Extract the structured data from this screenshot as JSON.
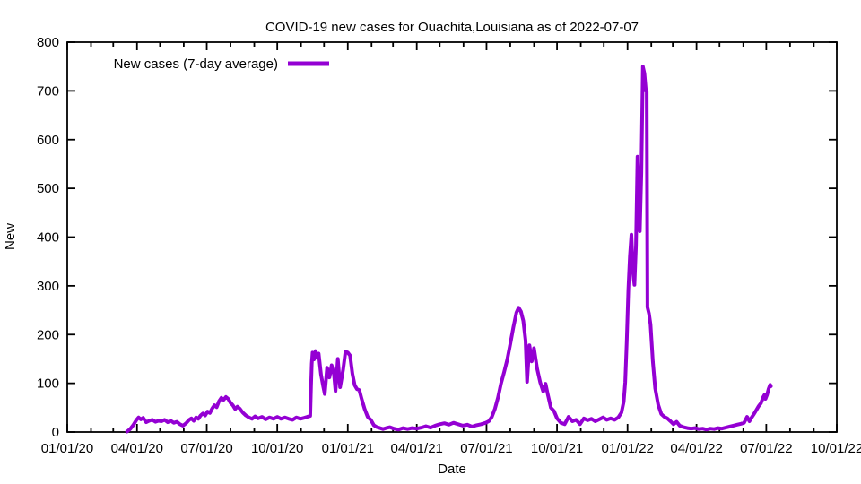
{
  "page": {
    "background": "#ffffff"
  },
  "chart_data": {
    "type": "line",
    "title": "COVID-19 new cases for Ouachita,Louisiana as of 2022-07-07",
    "xlabel": "Date",
    "ylabel": "New",
    "grid": false,
    "legend_position": "top-left-inside",
    "axis_color": "#000000",
    "x_range": [
      "2020-01-01",
      "2022-10-01"
    ],
    "ylim": [
      0,
      800
    ],
    "y_ticks": [
      0,
      100,
      200,
      300,
      400,
      500,
      600,
      700,
      800
    ],
    "x_ticks": [
      {
        "date": "2020-01-01",
        "label": "01/01/20"
      },
      {
        "date": "2020-04-01",
        "label": "04/01/20"
      },
      {
        "date": "2020-07-01",
        "label": "07/01/20"
      },
      {
        "date": "2020-10-01",
        "label": "10/01/20"
      },
      {
        "date": "2021-01-01",
        "label": "01/01/21"
      },
      {
        "date": "2021-04-01",
        "label": "04/01/21"
      },
      {
        "date": "2021-07-01",
        "label": "07/01/21"
      },
      {
        "date": "2021-10-01",
        "label": "10/01/21"
      },
      {
        "date": "2022-01-01",
        "label": "01/01/22"
      },
      {
        "date": "2022-04-01",
        "label": "04/01/22"
      },
      {
        "date": "2022-07-01",
        "label": "07/01/22"
      },
      {
        "date": "2022-10-01",
        "label": "10/01/22"
      }
    ],
    "minor_x_ticks": "monthly",
    "series": [
      {
        "name": "New cases (7-day average)",
        "color": "#9400D3",
        "points": [
          [
            "2020-03-19",
            1
          ],
          [
            "2020-03-23",
            6
          ],
          [
            "2020-03-27",
            14
          ],
          [
            "2020-03-31",
            24
          ],
          [
            "2020-04-03",
            30
          ],
          [
            "2020-04-06",
            26
          ],
          [
            "2020-04-09",
            29
          ],
          [
            "2020-04-13",
            20
          ],
          [
            "2020-04-17",
            23
          ],
          [
            "2020-04-21",
            25
          ],
          [
            "2020-04-25",
            21
          ],
          [
            "2020-04-29",
            23
          ],
          [
            "2020-05-03",
            22
          ],
          [
            "2020-05-07",
            25
          ],
          [
            "2020-05-11",
            20
          ],
          [
            "2020-05-15",
            23
          ],
          [
            "2020-05-19",
            19
          ],
          [
            "2020-05-23",
            21
          ],
          [
            "2020-05-27",
            16
          ],
          [
            "2020-05-31",
            13
          ],
          [
            "2020-06-04",
            18
          ],
          [
            "2020-06-08",
            25
          ],
          [
            "2020-06-11",
            28
          ],
          [
            "2020-06-14",
            23
          ],
          [
            "2020-06-17",
            30
          ],
          [
            "2020-06-20",
            27
          ],
          [
            "2020-06-23",
            34
          ],
          [
            "2020-06-26",
            38
          ],
          [
            "2020-06-29",
            34
          ],
          [
            "2020-07-02",
            42
          ],
          [
            "2020-07-05",
            39
          ],
          [
            "2020-07-08",
            48
          ],
          [
            "2020-07-11",
            55
          ],
          [
            "2020-07-14",
            51
          ],
          [
            "2020-07-17",
            63
          ],
          [
            "2020-07-20",
            70
          ],
          [
            "2020-07-23",
            66
          ],
          [
            "2020-07-26",
            72
          ],
          [
            "2020-07-29",
            68
          ],
          [
            "2020-08-01",
            60
          ],
          [
            "2020-08-04",
            55
          ],
          [
            "2020-08-07",
            47
          ],
          [
            "2020-08-10",
            52
          ],
          [
            "2020-08-13",
            48
          ],
          [
            "2020-08-17",
            40
          ],
          [
            "2020-08-21",
            34
          ],
          [
            "2020-08-25",
            30
          ],
          [
            "2020-08-29",
            27
          ],
          [
            "2020-09-02",
            32
          ],
          [
            "2020-09-06",
            28
          ],
          [
            "2020-09-11",
            31
          ],
          [
            "2020-09-16",
            26
          ],
          [
            "2020-09-21",
            30
          ],
          [
            "2020-09-26",
            27
          ],
          [
            "2020-10-01",
            31
          ],
          [
            "2020-10-06",
            27
          ],
          [
            "2020-10-11",
            30
          ],
          [
            "2020-10-16",
            27
          ],
          [
            "2020-10-21",
            25
          ],
          [
            "2020-10-26",
            30
          ],
          [
            "2020-10-31",
            27
          ],
          [
            "2020-11-05",
            29
          ],
          [
            "2020-11-09",
            31
          ],
          [
            "2020-11-13",
            33
          ],
          [
            "2020-11-14",
            95
          ],
          [
            "2020-11-15",
            140
          ],
          [
            "2020-11-16",
            163
          ],
          [
            "2020-11-18",
            149
          ],
          [
            "2020-11-20",
            166
          ],
          [
            "2020-11-22",
            154
          ],
          [
            "2020-11-24",
            161
          ],
          [
            "2020-11-27",
            118
          ],
          [
            "2020-11-30",
            93
          ],
          [
            "2020-12-02",
            78
          ],
          [
            "2020-12-05",
            132
          ],
          [
            "2020-12-08",
            112
          ],
          [
            "2020-12-11",
            137
          ],
          [
            "2020-12-14",
            118
          ],
          [
            "2020-12-16",
            84
          ],
          [
            "2020-12-19",
            150
          ],
          [
            "2020-12-22",
            92
          ],
          [
            "2020-12-26",
            128
          ],
          [
            "2020-12-29",
            165
          ],
          [
            "2021-01-01",
            163
          ],
          [
            "2021-01-04",
            157
          ],
          [
            "2021-01-07",
            120
          ],
          [
            "2021-01-10",
            96
          ],
          [
            "2021-01-13",
            88
          ],
          [
            "2021-01-16",
            86
          ],
          [
            "2021-01-19",
            68
          ],
          [
            "2021-01-23",
            47
          ],
          [
            "2021-01-27",
            31
          ],
          [
            "2021-01-31",
            25
          ],
          [
            "2021-02-04",
            14
          ],
          [
            "2021-02-08",
            10
          ],
          [
            "2021-02-12",
            8
          ],
          [
            "2021-02-16",
            6
          ],
          [
            "2021-02-20",
            8
          ],
          [
            "2021-02-25",
            10
          ],
          [
            "2021-03-02",
            7
          ],
          [
            "2021-03-08",
            5
          ],
          [
            "2021-03-14",
            8
          ],
          [
            "2021-03-20",
            6
          ],
          [
            "2021-03-26",
            8
          ],
          [
            "2021-04-01",
            7
          ],
          [
            "2021-04-07",
            9
          ],
          [
            "2021-04-13",
            12
          ],
          [
            "2021-04-19",
            9
          ],
          [
            "2021-04-25",
            13
          ],
          [
            "2021-05-01",
            16
          ],
          [
            "2021-05-07",
            18
          ],
          [
            "2021-05-13",
            15
          ],
          [
            "2021-05-19",
            19
          ],
          [
            "2021-05-25",
            16
          ],
          [
            "2021-05-31",
            13
          ],
          [
            "2021-06-06",
            15
          ],
          [
            "2021-06-12",
            11
          ],
          [
            "2021-06-18",
            14
          ],
          [
            "2021-06-24",
            16
          ],
          [
            "2021-06-30",
            19
          ],
          [
            "2021-07-04",
            22
          ],
          [
            "2021-07-08",
            31
          ],
          [
            "2021-07-12",
            48
          ],
          [
            "2021-07-16",
            71
          ],
          [
            "2021-07-20",
            100
          ],
          [
            "2021-07-24",
            123
          ],
          [
            "2021-07-28",
            148
          ],
          [
            "2021-08-01",
            180
          ],
          [
            "2021-08-05",
            215
          ],
          [
            "2021-08-09",
            245
          ],
          [
            "2021-08-12",
            255
          ],
          [
            "2021-08-15",
            247
          ],
          [
            "2021-08-18",
            228
          ],
          [
            "2021-08-21",
            188
          ],
          [
            "2021-08-23",
            103
          ],
          [
            "2021-08-26",
            178
          ],
          [
            "2021-08-29",
            145
          ],
          [
            "2021-09-01",
            172
          ],
          [
            "2021-09-05",
            130
          ],
          [
            "2021-09-09",
            102
          ],
          [
            "2021-09-13",
            83
          ],
          [
            "2021-09-16",
            99
          ],
          [
            "2021-09-19",
            77
          ],
          [
            "2021-09-23",
            50
          ],
          [
            "2021-09-27",
            43
          ],
          [
            "2021-10-01",
            28
          ],
          [
            "2021-10-06",
            19
          ],
          [
            "2021-10-11",
            16
          ],
          [
            "2021-10-16",
            31
          ],
          [
            "2021-10-21",
            22
          ],
          [
            "2021-10-26",
            25
          ],
          [
            "2021-10-31",
            16
          ],
          [
            "2021-11-05",
            28
          ],
          [
            "2021-11-10",
            24
          ],
          [
            "2021-11-15",
            27
          ],
          [
            "2021-11-20",
            22
          ],
          [
            "2021-11-25",
            26
          ],
          [
            "2021-11-30",
            30
          ],
          [
            "2021-12-05",
            25
          ],
          [
            "2021-12-10",
            28
          ],
          [
            "2021-12-15",
            25
          ],
          [
            "2021-12-20",
            30
          ],
          [
            "2021-12-24",
            40
          ],
          [
            "2021-12-27",
            62
          ],
          [
            "2021-12-29",
            102
          ],
          [
            "2021-12-31",
            185
          ],
          [
            "2022-01-02",
            292
          ],
          [
            "2022-01-04",
            360
          ],
          [
            "2022-01-06",
            405
          ],
          [
            "2022-01-08",
            330
          ],
          [
            "2022-01-10",
            302
          ],
          [
            "2022-01-12",
            382
          ],
          [
            "2022-01-14",
            565
          ],
          [
            "2022-01-16",
            478
          ],
          [
            "2022-01-17",
            412
          ],
          [
            "2022-01-19",
            532
          ],
          [
            "2022-01-21",
            750
          ],
          [
            "2022-01-23",
            736
          ],
          [
            "2022-01-25",
            700
          ],
          [
            "2022-01-26",
            698
          ],
          [
            "2022-01-27",
            256
          ],
          [
            "2022-01-29",
            243
          ],
          [
            "2022-01-31",
            221
          ],
          [
            "2022-02-03",
            145
          ],
          [
            "2022-02-06",
            90
          ],
          [
            "2022-02-10",
            56
          ],
          [
            "2022-02-14",
            37
          ],
          [
            "2022-02-18",
            31
          ],
          [
            "2022-02-22",
            28
          ],
          [
            "2022-02-26",
            22
          ],
          [
            "2022-03-02",
            16
          ],
          [
            "2022-03-06",
            21
          ],
          [
            "2022-03-10",
            13
          ],
          [
            "2022-03-15",
            10
          ],
          [
            "2022-03-20",
            8
          ],
          [
            "2022-03-25",
            7
          ],
          [
            "2022-03-30",
            8
          ],
          [
            "2022-04-04",
            6
          ],
          [
            "2022-04-09",
            7
          ],
          [
            "2022-04-14",
            5
          ],
          [
            "2022-04-19",
            7
          ],
          [
            "2022-04-24",
            6
          ],
          [
            "2022-04-29",
            8
          ],
          [
            "2022-05-04",
            7
          ],
          [
            "2022-05-09",
            9
          ],
          [
            "2022-05-14",
            11
          ],
          [
            "2022-05-19",
            13
          ],
          [
            "2022-05-24",
            15
          ],
          [
            "2022-05-29",
            17
          ],
          [
            "2022-06-02",
            19
          ],
          [
            "2022-06-06",
            31
          ],
          [
            "2022-06-09",
            22
          ],
          [
            "2022-06-12",
            30
          ],
          [
            "2022-06-15",
            37
          ],
          [
            "2022-06-18",
            45
          ],
          [
            "2022-06-21",
            53
          ],
          [
            "2022-06-24",
            59
          ],
          [
            "2022-06-27",
            72
          ],
          [
            "2022-06-29",
            77
          ],
          [
            "2022-06-30",
            68
          ],
          [
            "2022-07-02",
            76
          ],
          [
            "2022-07-04",
            88
          ],
          [
            "2022-07-06",
            97
          ],
          [
            "2022-07-07",
            94
          ]
        ]
      }
    ]
  }
}
